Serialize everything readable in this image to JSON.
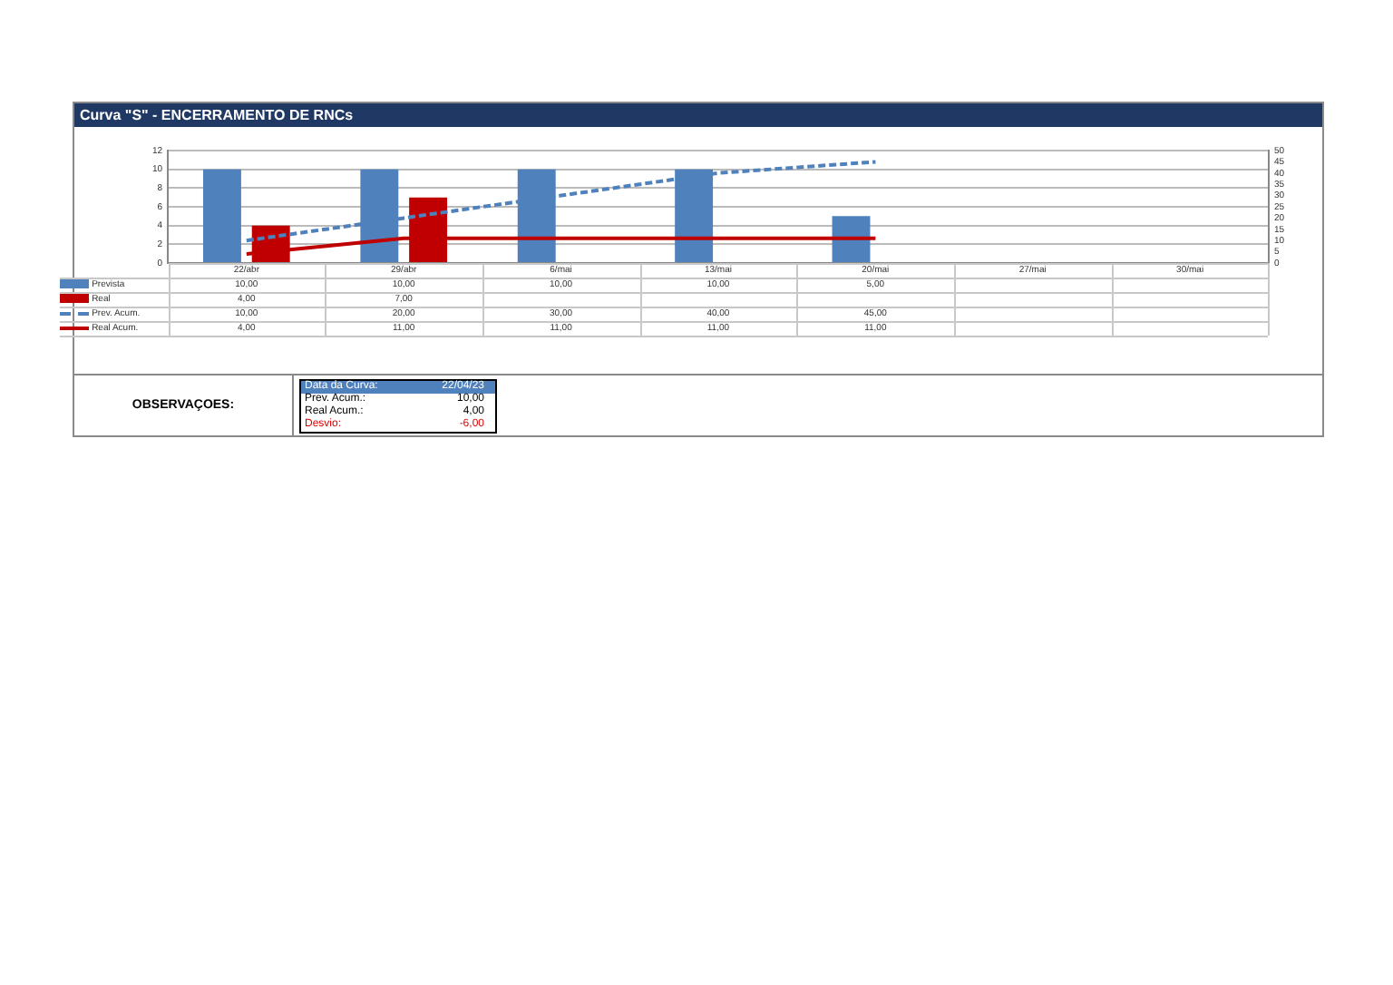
{
  "chart_data": {
    "type": "bar",
    "title": "Curva \"S\" - ENCERRAMENTO DE RNCs",
    "categories": [
      "22/abr",
      "29/abr",
      "6/mai",
      "13/mai",
      "20/mai",
      "27/mai",
      "30/mai"
    ],
    "series": [
      {
        "name": "Prevista",
        "color": "#4f81bd",
        "values": [
          10,
          10,
          10,
          10,
          5,
          null,
          null
        ],
        "value_labels": [
          "10,00",
          "10,00",
          "10,00",
          "10,00",
          "5,00",
          null,
          null
        ]
      },
      {
        "name": "Real",
        "color": "#c00000",
        "values": [
          4,
          7,
          null,
          null,
          null,
          null,
          null
        ],
        "value_labels": [
          "4,00",
          "7,00",
          null,
          null,
          null,
          null,
          null
        ]
      },
      {
        "name": "Prev. Acum.",
        "type": "line",
        "axis": "y2",
        "line_style": "dashed",
        "color": "#4f81bd",
        "values": [
          10,
          20,
          30,
          40,
          45,
          null,
          null
        ],
        "value_labels": [
          "10,00",
          "20,00",
          "30,00",
          "40,00",
          "45,00",
          null,
          null
        ]
      },
      {
        "name": "Real Acum.",
        "type": "line",
        "axis": "y2",
        "line_style": "solid",
        "color": "#c00000",
        "values": [
          4,
          11,
          11,
          11,
          11,
          null,
          null
        ],
        "value_labels": [
          "4,00",
          "11,00",
          "11,00",
          "11,00",
          "11,00",
          null,
          null
        ]
      }
    ],
    "ylim": [
      0,
      12
    ],
    "yticks": [
      0,
      2,
      4,
      6,
      8,
      10,
      12
    ],
    "y2lim": [
      0,
      50
    ],
    "y2ticks": [
      0,
      5,
      10,
      15,
      20,
      25,
      30,
      35,
      40,
      45,
      50
    ],
    "grid": "y",
    "legend": "bottom",
    "marker": "none",
    "annotations": [
      "OBSERVAÇOES:",
      "Data da Curva:",
      "22/04/23",
      "Prev. Acum.:",
      "10,00",
      "Real Acum.:",
      "4,00",
      "Desvio:",
      "-6,00"
    ]
  }
}
